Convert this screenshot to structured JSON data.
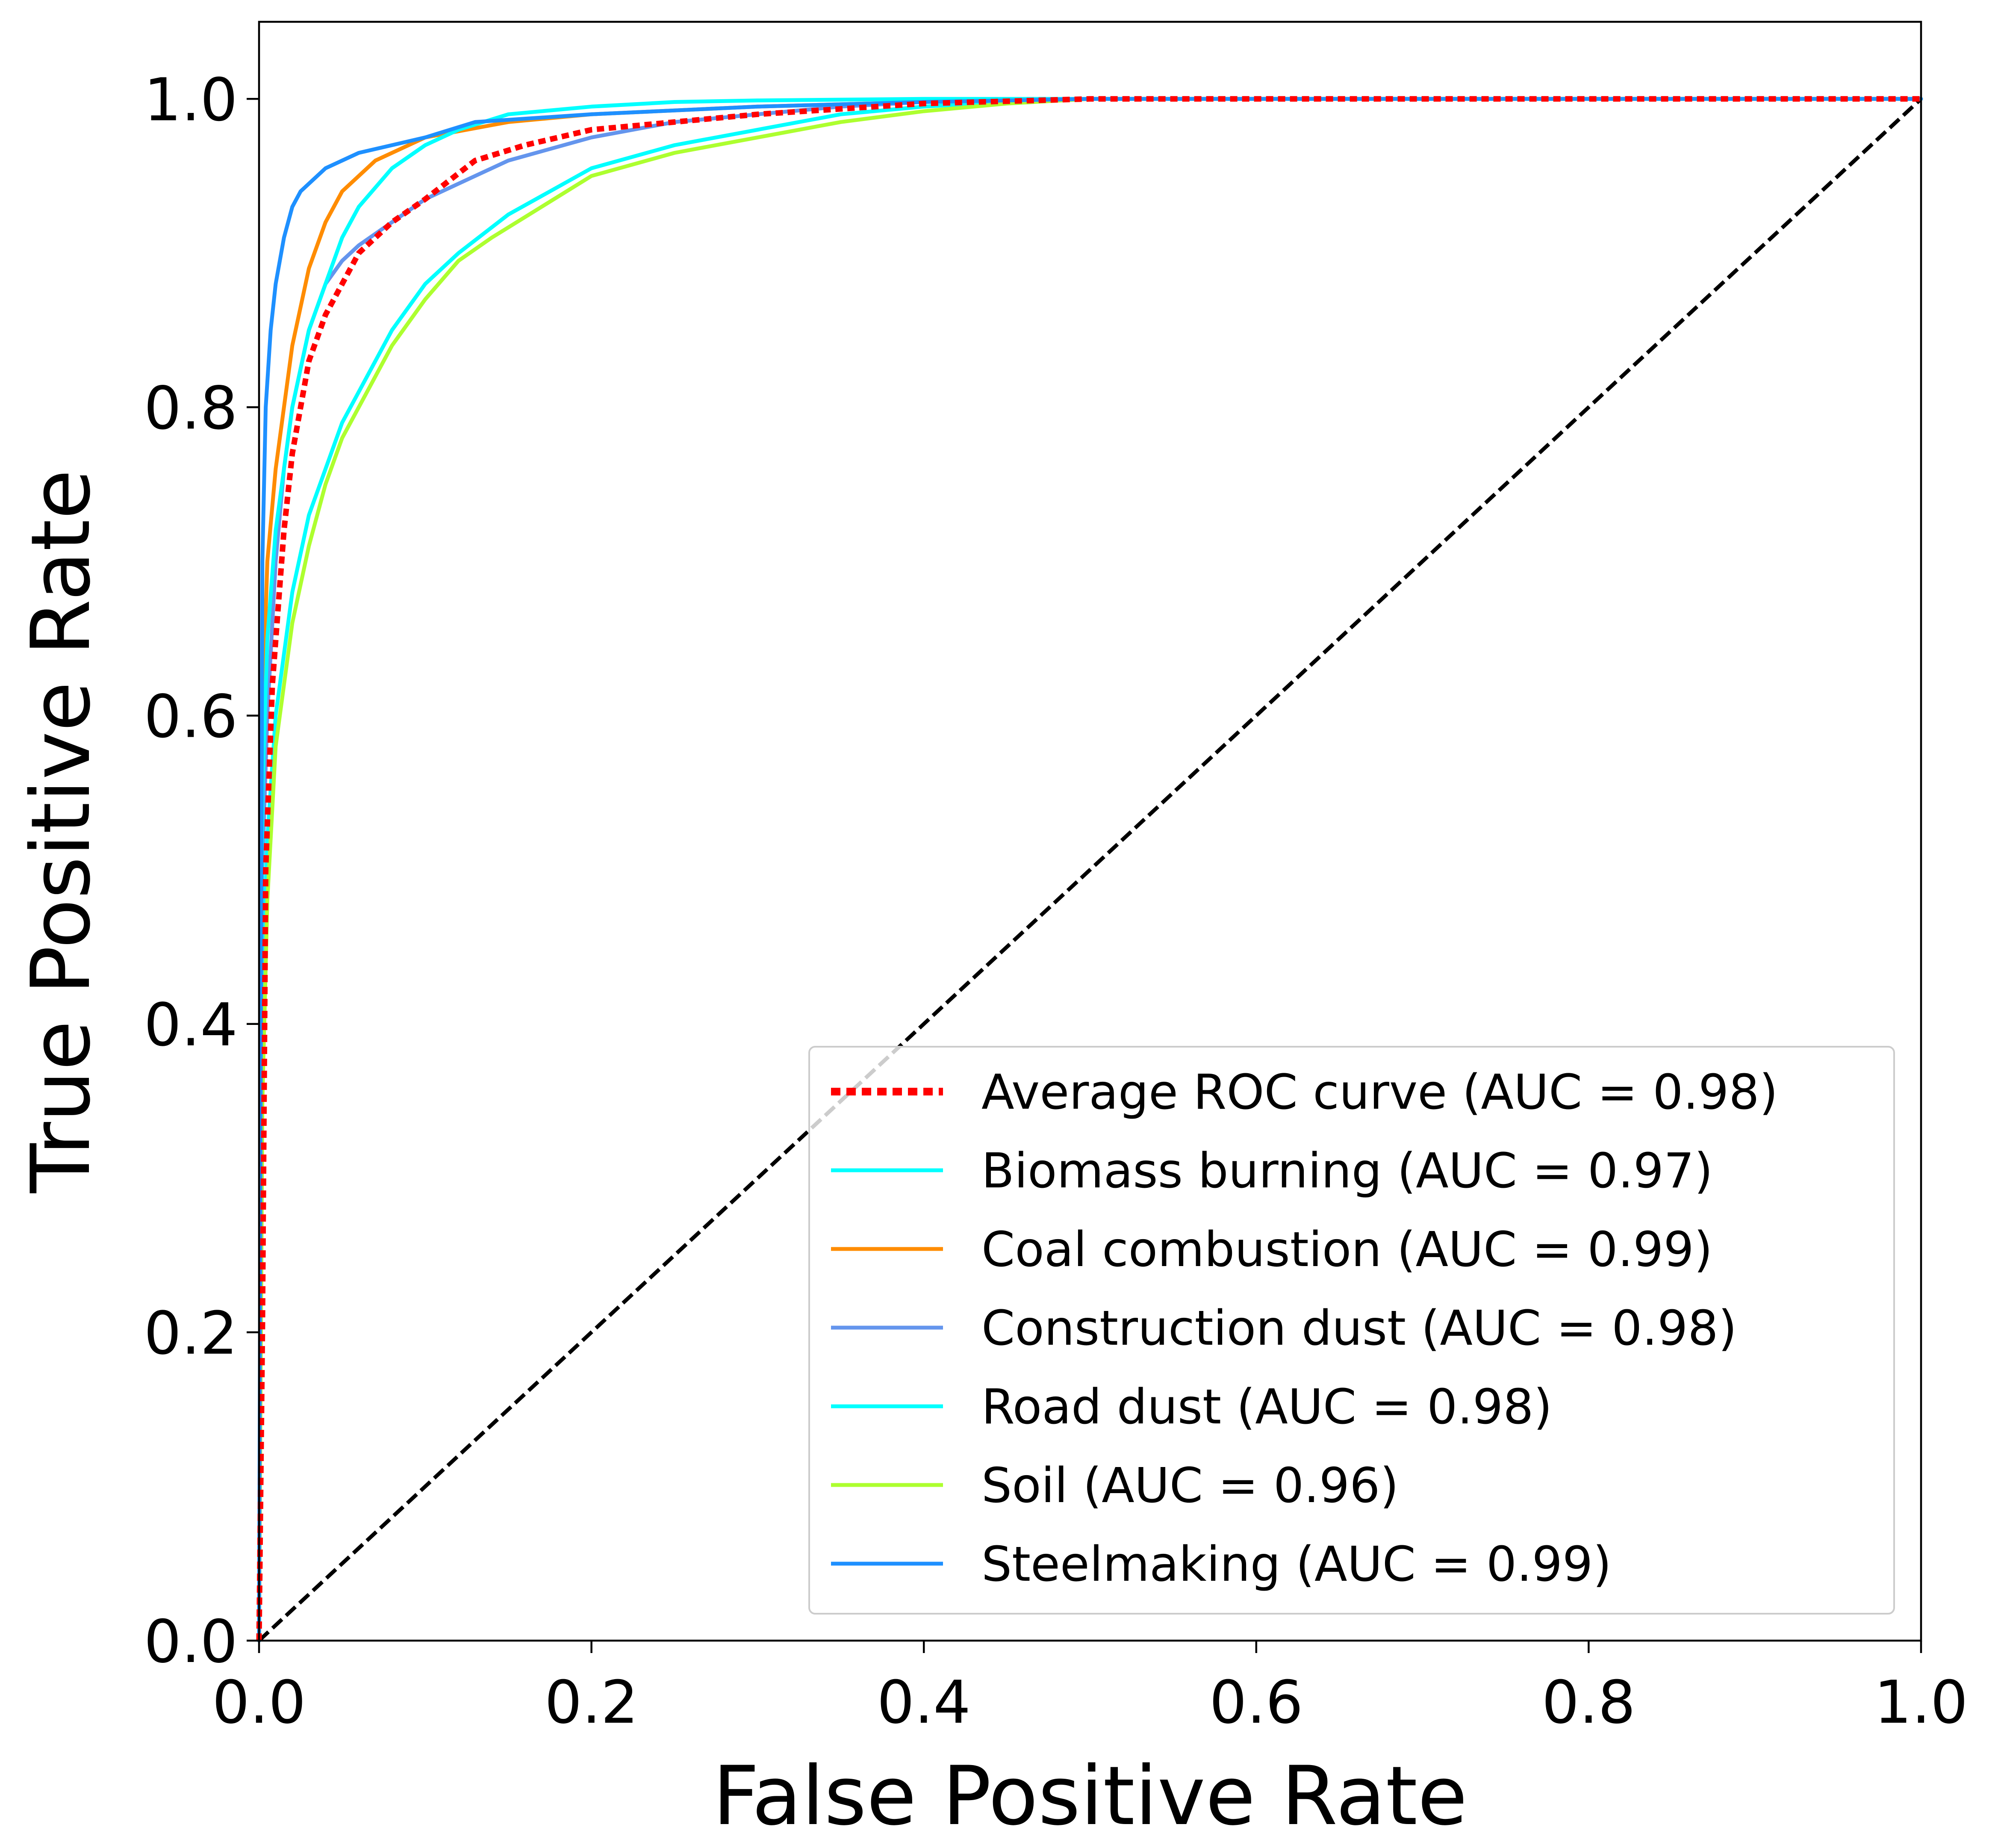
{
  "chart_data": {
    "type": "line",
    "title": "",
    "xlabel": "False Positive Rate",
    "ylabel": "True Positive Rate",
    "xlim": [
      0.0,
      1.0
    ],
    "ylim": [
      0.0,
      1.05
    ],
    "x_ticks": [
      "0.0",
      "0.2",
      "0.4",
      "0.6",
      "0.8",
      "1.0"
    ],
    "y_ticks": [
      "0.0",
      "0.2",
      "0.4",
      "0.6",
      "0.8",
      "1.0"
    ],
    "grid": false,
    "legend_position": "lower-right",
    "series": [
      {
        "name": "Average ROC curve (AUC = 0.98)",
        "color": "#ff0000",
        "style": "dotted",
        "x": [
          0.0,
          0.002,
          0.004,
          0.008,
          0.015,
          0.02,
          0.03,
          0.04,
          0.05,
          0.06,
          0.08,
          0.1,
          0.13,
          0.16,
          0.2,
          0.25,
          0.3,
          0.4,
          0.5,
          1.0
        ],
        "y": [
          0.0,
          0.2,
          0.5,
          0.62,
          0.72,
          0.77,
          0.83,
          0.86,
          0.88,
          0.9,
          0.92,
          0.935,
          0.96,
          0.97,
          0.98,
          0.985,
          0.99,
          0.997,
          1.0,
          1.0
        ]
      },
      {
        "name": "Biomass burning (AUC = 0.97)",
        "color": "#00ffff",
        "style": "solid",
        "x": [
          0.0,
          0.002,
          0.005,
          0.01,
          0.02,
          0.03,
          0.04,
          0.05,
          0.06,
          0.08,
          0.1,
          0.12,
          0.15,
          0.2,
          0.25,
          0.3,
          0.35,
          0.4,
          0.45,
          0.5,
          1.0
        ],
        "y": [
          0.0,
          0.4,
          0.52,
          0.6,
          0.68,
          0.73,
          0.76,
          0.79,
          0.81,
          0.85,
          0.88,
          0.9,
          0.925,
          0.955,
          0.97,
          0.98,
          0.99,
          0.995,
          0.998,
          1.0,
          1.0
        ]
      },
      {
        "name": "Coal combustion (AUC = 0.99)",
        "color": "#ff8c00",
        "style": "solid",
        "x": [
          0.0,
          0.002,
          0.005,
          0.01,
          0.015,
          0.02,
          0.03,
          0.04,
          0.05,
          0.07,
          0.1,
          0.15,
          0.2,
          0.3,
          0.4,
          0.5,
          1.0
        ],
        "y": [
          0.0,
          0.6,
          0.7,
          0.76,
          0.8,
          0.84,
          0.89,
          0.92,
          0.94,
          0.96,
          0.975,
          0.985,
          0.99,
          0.995,
          0.998,
          1.0,
          1.0
        ]
      },
      {
        "name": "Construction dust (AUC = 0.98)",
        "color": "#6495ed",
        "style": "solid",
        "x": [
          0.0,
          0.002,
          0.005,
          0.01,
          0.015,
          0.02,
          0.03,
          0.04,
          0.05,
          0.06,
          0.08,
          0.1,
          0.12,
          0.15,
          0.2,
          0.25,
          0.3,
          0.35,
          0.4,
          0.5,
          1.0
        ],
        "y": [
          0.0,
          0.5,
          0.6,
          0.7,
          0.76,
          0.8,
          0.85,
          0.88,
          0.895,
          0.905,
          0.92,
          0.935,
          0.945,
          0.96,
          0.975,
          0.985,
          0.99,
          0.995,
          0.998,
          1.0,
          1.0
        ]
      },
      {
        "name": "Road dust (AUC = 0.98)",
        "color": "#00ffff",
        "style": "solid",
        "x": [
          0.0,
          0.002,
          0.005,
          0.01,
          0.02,
          0.03,
          0.04,
          0.05,
          0.06,
          0.08,
          0.1,
          0.12,
          0.15,
          0.2,
          0.25,
          0.3,
          0.4,
          0.5,
          1.0
        ],
        "y": [
          0.0,
          0.55,
          0.65,
          0.72,
          0.8,
          0.85,
          0.88,
          0.91,
          0.93,
          0.955,
          0.97,
          0.98,
          0.99,
          0.995,
          0.998,
          0.999,
          1.0,
          1.0,
          1.0
        ]
      },
      {
        "name": "Soil (AUC = 0.96)",
        "color": "#adff2f",
        "style": "solid",
        "x": [
          0.0,
          0.002,
          0.005,
          0.01,
          0.02,
          0.03,
          0.04,
          0.05,
          0.06,
          0.08,
          0.1,
          0.12,
          0.14,
          0.17,
          0.2,
          0.25,
          0.3,
          0.35,
          0.4,
          0.45,
          0.5,
          1.0
        ],
        "y": [
          0.0,
          0.35,
          0.48,
          0.58,
          0.66,
          0.71,
          0.75,
          0.78,
          0.8,
          0.84,
          0.87,
          0.895,
          0.91,
          0.93,
          0.95,
          0.965,
          0.975,
          0.985,
          0.992,
          0.997,
          1.0,
          1.0
        ]
      },
      {
        "name": "Steelmaking (AUC = 0.99)",
        "color": "#1e90ff",
        "style": "solid",
        "x": [
          0.0,
          0.002,
          0.004,
          0.007,
          0.01,
          0.015,
          0.02,
          0.025,
          0.03,
          0.04,
          0.05,
          0.06,
          0.08,
          0.1,
          0.13,
          0.2,
          0.3,
          0.4,
          0.5,
          1.0
        ],
        "y": [
          0.0,
          0.7,
          0.8,
          0.85,
          0.88,
          0.91,
          0.93,
          0.94,
          0.945,
          0.955,
          0.96,
          0.965,
          0.97,
          0.975,
          0.985,
          0.99,
          0.995,
          0.998,
          1.0,
          1.0
        ]
      },
      {
        "name": "",
        "color": "#000000",
        "style": "dashed",
        "x": [
          0.0,
          1.0
        ],
        "y": [
          0.0,
          1.0
        ]
      }
    ]
  }
}
